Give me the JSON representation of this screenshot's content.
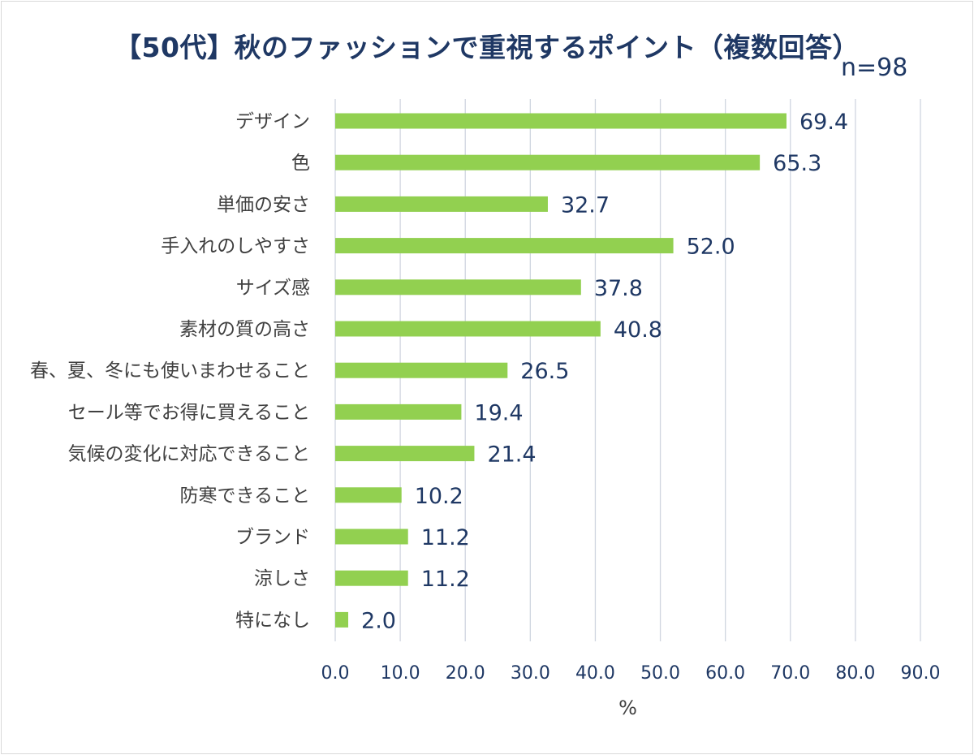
{
  "chart_data": {
    "type": "bar",
    "orientation": "horizontal",
    "title": "【50代】秋のファッションで重視するポイント（複数回答）",
    "sample_size": "n=98",
    "categories": [
      "デザイン",
      "色",
      "単価の安さ",
      "手入れのしやすさ",
      "サイズ感",
      "素材の質の高さ",
      "春、夏、冬にも使いまわせること",
      "セール等でお得に買えること",
      "気候の変化に対応できること",
      "防寒できること",
      "ブランド",
      "涼しさ",
      "特になし"
    ],
    "values": [
      69.4,
      65.3,
      32.7,
      52.0,
      37.8,
      40.8,
      26.5,
      19.4,
      21.4,
      10.2,
      11.2,
      11.2,
      2.0
    ],
    "value_labels": [
      "69.4",
      "65.3",
      "32.7",
      "52.0",
      "37.8",
      "40.8",
      "26.5",
      "19.4",
      "21.4",
      "10.2",
      "11.2",
      "11.2",
      "2.0"
    ],
    "xlabel": "%",
    "ylabel": "",
    "xlim": [
      0,
      90
    ],
    "x_ticks": [
      0,
      10,
      20,
      30,
      40,
      50,
      60,
      70,
      80,
      90
    ],
    "x_tick_labels": [
      "0.0",
      "10.0",
      "20.0",
      "30.0",
      "40.0",
      "50.0",
      "60.0",
      "70.0",
      "80.0",
      "90.0"
    ],
    "grid": true,
    "legend": "none",
    "colors": {
      "bar": "#92d050",
      "title": "#1f3864",
      "value_label": "#1f3864",
      "tick_label": "#1f3864",
      "category_label": "#404040",
      "grid": "#d0d5e0"
    }
  }
}
